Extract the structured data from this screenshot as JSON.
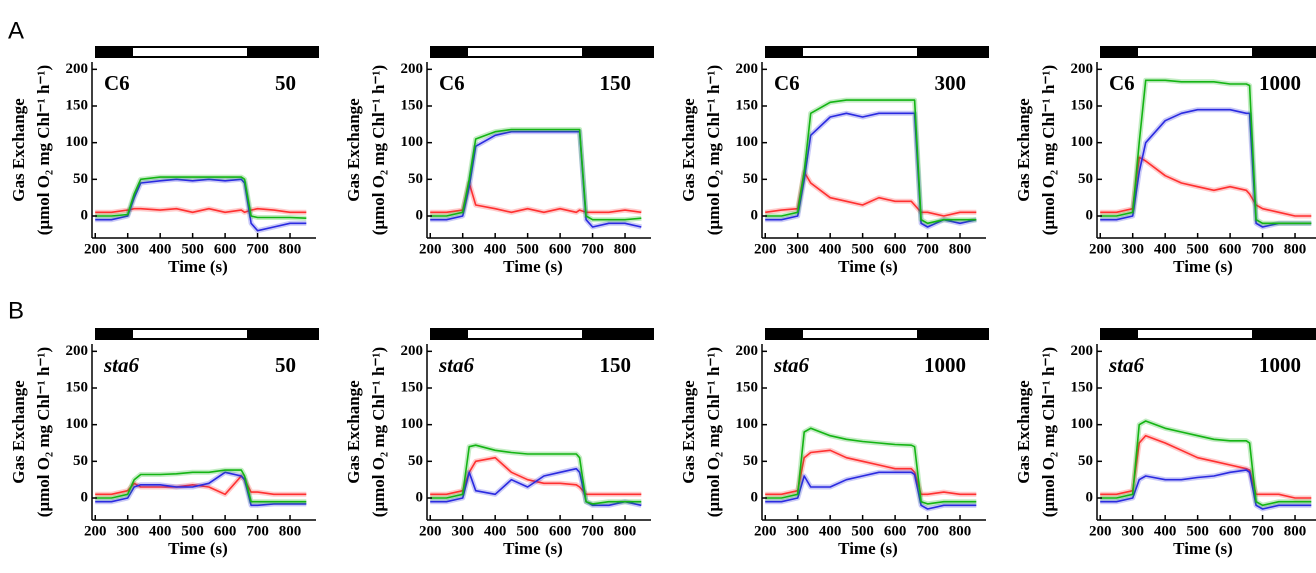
{
  "panels": [
    "A",
    "B"
  ],
  "chart_data": [
    {
      "type": "line",
      "annotations": [
        "C6",
        "50"
      ],
      "annotation_style": "normal",
      "ylabel": [
        "Gas Exchange",
        "(μmol O₂ mg Chl⁻¹ h⁻¹)"
      ],
      "xlabel": "Time (s)",
      "x": [
        200,
        250,
        300,
        320,
        340,
        400,
        450,
        500,
        550,
        600,
        650,
        660,
        680,
        700,
        750,
        800,
        850
      ],
      "xlim": [
        190,
        880
      ],
      "xticks": [
        200,
        300,
        400,
        500,
        600,
        700,
        800
      ],
      "ylim": [
        -30,
        210
      ],
      "yticks": [
        0,
        50,
        100,
        150,
        200
      ],
      "series": [
        {
          "color": "#ff3030",
          "values": [
            5,
            5,
            8,
            10,
            10,
            8,
            10,
            5,
            10,
            5,
            8,
            5,
            8,
            10,
            8,
            5,
            5
          ]
        },
        {
          "color": "#2a2ae0",
          "values": [
            -5,
            -5,
            0,
            25,
            45,
            48,
            50,
            48,
            50,
            48,
            50,
            45,
            -10,
            -20,
            -15,
            -10,
            -10
          ]
        },
        {
          "color": "#14b414",
          "values": [
            0,
            0,
            2,
            30,
            50,
            53,
            53,
            53,
            53,
            53,
            53,
            50,
            0,
            -2,
            -2,
            -2,
            -3
          ]
        }
      ]
    },
    {
      "type": "line",
      "annotations": [
        "C6",
        "150"
      ],
      "annotation_style": "normal",
      "ylabel": [
        "Gas Exchange",
        "(μmol O₂ mg Chl⁻¹ h⁻¹)"
      ],
      "xlabel": "Time (s)",
      "x": [
        200,
        250,
        300,
        320,
        340,
        400,
        450,
        500,
        550,
        600,
        650,
        660,
        680,
        700,
        750,
        800,
        850
      ],
      "xlim": [
        190,
        880
      ],
      "xticks": [
        200,
        300,
        400,
        500,
        600,
        700,
        800
      ],
      "ylim": [
        -30,
        210
      ],
      "yticks": [
        0,
        50,
        100,
        150,
        200
      ],
      "series": [
        {
          "color": "#ff3030",
          "values": [
            5,
            5,
            8,
            45,
            15,
            10,
            5,
            10,
            5,
            10,
            5,
            8,
            5,
            5,
            5,
            8,
            5
          ]
        },
        {
          "color": "#2a2ae0",
          "values": [
            -5,
            -5,
            0,
            40,
            95,
            110,
            115,
            115,
            115,
            115,
            115,
            115,
            -5,
            -15,
            -10,
            -10,
            -15
          ]
        },
        {
          "color": "#14b414",
          "values": [
            0,
            0,
            5,
            50,
            105,
            115,
            118,
            118,
            118,
            118,
            118,
            118,
            0,
            -5,
            -5,
            -5,
            -3
          ]
        }
      ]
    },
    {
      "type": "line",
      "annotations": [
        "C6",
        "300"
      ],
      "annotation_style": "normal",
      "ylabel": [
        "Gas Exchange",
        "(μmol O₂ mg Chl⁻¹ h⁻¹)"
      ],
      "xlabel": "Time (s)",
      "x": [
        200,
        250,
        300,
        320,
        340,
        400,
        450,
        500,
        550,
        600,
        650,
        660,
        680,
        700,
        750,
        800,
        850
      ],
      "xlim": [
        190,
        880
      ],
      "xticks": [
        200,
        300,
        400,
        500,
        600,
        700,
        800
      ],
      "ylim": [
        -30,
        210
      ],
      "yticks": [
        0,
        50,
        100,
        150,
        200
      ],
      "series": [
        {
          "color": "#ff3030",
          "values": [
            5,
            8,
            10,
            60,
            45,
            25,
            20,
            15,
            25,
            20,
            20,
            15,
            5,
            5,
            0,
            5,
            5
          ]
        },
        {
          "color": "#2a2ae0",
          "values": [
            -5,
            -5,
            0,
            50,
            110,
            135,
            140,
            135,
            140,
            140,
            140,
            140,
            -10,
            -15,
            -5,
            -10,
            -5
          ]
        },
        {
          "color": "#14b414",
          "values": [
            0,
            0,
            5,
            60,
            140,
            155,
            158,
            158,
            158,
            158,
            158,
            158,
            -5,
            -10,
            -5,
            -5,
            -5
          ]
        }
      ]
    },
    {
      "type": "line",
      "annotations": [
        "C6",
        "1000"
      ],
      "annotation_style": "normal",
      "ylabel": [
        "Gas Exchange",
        "(μmol O₂ mg Chl⁻¹ h⁻¹)"
      ],
      "xlabel": "Time (s)",
      "x": [
        200,
        250,
        300,
        320,
        340,
        400,
        450,
        500,
        550,
        600,
        650,
        660,
        680,
        700,
        750,
        800,
        850
      ],
      "xlim": [
        190,
        880
      ],
      "xticks": [
        200,
        300,
        400,
        500,
        600,
        700,
        800
      ],
      "ylim": [
        -30,
        210
      ],
      "yticks": [
        0,
        50,
        100,
        150,
        200
      ],
      "series": [
        {
          "color": "#ff3030",
          "values": [
            5,
            5,
            10,
            80,
            75,
            55,
            45,
            40,
            35,
            40,
            35,
            30,
            15,
            10,
            5,
            0,
            0
          ]
        },
        {
          "color": "#2a2ae0",
          "values": [
            -5,
            -5,
            0,
            60,
            100,
            130,
            140,
            145,
            145,
            145,
            140,
            140,
            -10,
            -15,
            -10,
            -10,
            -10
          ]
        },
        {
          "color": "#14b414",
          "values": [
            0,
            0,
            5,
            100,
            185,
            185,
            183,
            183,
            183,
            180,
            180,
            178,
            -5,
            -10,
            -10,
            -10,
            -10
          ]
        }
      ]
    },
    {
      "type": "line",
      "annotations": [
        "sta6",
        "50"
      ],
      "annotation_style": "italic",
      "ylabel": [
        "Gas Exchange",
        "(μmol O₂ mg Chl⁻¹ h⁻¹)"
      ],
      "xlabel": "Time (s)",
      "x": [
        200,
        250,
        300,
        320,
        340,
        400,
        450,
        500,
        550,
        600,
        650,
        660,
        680,
        700,
        750,
        800,
        850
      ],
      "xlim": [
        190,
        880
      ],
      "xticks": [
        200,
        300,
        400,
        500,
        600,
        700,
        800
      ],
      "ylim": [
        -30,
        210
      ],
      "yticks": [
        0,
        50,
        100,
        150,
        200
      ],
      "series": [
        {
          "color": "#ff3030",
          "values": [
            5,
            5,
            10,
            20,
            15,
            15,
            15,
            18,
            15,
            5,
            30,
            25,
            8,
            8,
            5,
            5,
            5
          ]
        },
        {
          "color": "#2a2ae0",
          "values": [
            -5,
            -5,
            0,
            15,
            18,
            18,
            15,
            15,
            20,
            35,
            30,
            25,
            -10,
            -10,
            -8,
            -8,
            -8
          ]
        },
        {
          "color": "#14b414",
          "values": [
            0,
            0,
            5,
            25,
            32,
            32,
            33,
            35,
            35,
            38,
            38,
            30,
            -5,
            -5,
            -5,
            -5,
            -5
          ]
        }
      ]
    },
    {
      "type": "line",
      "annotations": [
        "sta6",
        "150"
      ],
      "annotation_style": "italic",
      "ylabel": [
        "Gas Exchange",
        "(μmol O₂ mg Chl⁻¹ h⁻¹)"
      ],
      "xlabel": "Time (s)",
      "x": [
        200,
        250,
        300,
        320,
        340,
        400,
        450,
        500,
        550,
        600,
        650,
        660,
        680,
        700,
        750,
        800,
        850
      ],
      "xlim": [
        190,
        880
      ],
      "xticks": [
        200,
        300,
        400,
        500,
        600,
        700,
        800
      ],
      "ylim": [
        -30,
        210
      ],
      "yticks": [
        0,
        50,
        100,
        150,
        200
      ],
      "series": [
        {
          "color": "#ff3030",
          "values": [
            5,
            5,
            10,
            35,
            50,
            55,
            35,
            25,
            20,
            20,
            18,
            15,
            5,
            5,
            5,
            5,
            5
          ]
        },
        {
          "color": "#2a2ae0",
          "values": [
            -5,
            -5,
            0,
            35,
            10,
            5,
            25,
            15,
            30,
            35,
            40,
            35,
            -5,
            -10,
            -10,
            -5,
            -10
          ]
        },
        {
          "color": "#14b414",
          "values": [
            0,
            0,
            5,
            70,
            72,
            65,
            62,
            60,
            60,
            60,
            60,
            55,
            -5,
            -8,
            -5,
            -5,
            -5
          ]
        }
      ]
    },
    {
      "type": "line",
      "annotations": [
        "sta6",
        "1000"
      ],
      "annotation_style": "italic",
      "ylabel": [
        "Gas Exchange",
        "(μmol O₂ mg Chl⁻¹ h⁻¹)"
      ],
      "xlabel": "Time (s)",
      "x": [
        200,
        250,
        300,
        320,
        340,
        400,
        450,
        500,
        550,
        600,
        650,
        660,
        680,
        700,
        750,
        800,
        850
      ],
      "xlim": [
        190,
        880
      ],
      "xticks": [
        200,
        300,
        400,
        500,
        600,
        700,
        800
      ],
      "ylim": [
        -30,
        210
      ],
      "yticks": [
        0,
        50,
        100,
        150,
        200
      ],
      "series": [
        {
          "color": "#ff3030",
          "values": [
            5,
            5,
            10,
            55,
            62,
            65,
            55,
            50,
            45,
            40,
            40,
            35,
            5,
            5,
            8,
            5,
            5
          ]
        },
        {
          "color": "#2a2ae0",
          "values": [
            -5,
            -5,
            0,
            30,
            15,
            15,
            25,
            30,
            35,
            35,
            35,
            32,
            -10,
            -15,
            -10,
            -10,
            -10
          ]
        },
        {
          "color": "#14b414",
          "values": [
            0,
            0,
            5,
            90,
            95,
            85,
            80,
            77,
            75,
            73,
            72,
            70,
            -5,
            -8,
            -5,
            -5,
            -5
          ]
        }
      ]
    },
    {
      "type": "line",
      "annotations": [
        "sta6",
        "1000"
      ],
      "annotation_style": "italic",
      "ylabel": [
        "Gas Exchange",
        "(μmol O₂ mg Chl⁻¹ h⁻¹)"
      ],
      "xlabel": "Time (s)",
      "x": [
        200,
        250,
        300,
        320,
        340,
        400,
        450,
        500,
        550,
        600,
        650,
        660,
        680,
        700,
        750,
        800,
        850
      ],
      "xlim": [
        190,
        880
      ],
      "xticks": [
        200,
        300,
        400,
        500,
        600,
        700,
        800
      ],
      "ylim": [
        -30,
        210
      ],
      "yticks": [
        0,
        50,
        100,
        150,
        200
      ],
      "series": [
        {
          "color": "#ff3030",
          "values": [
            5,
            5,
            10,
            75,
            85,
            75,
            65,
            55,
            50,
            45,
            40,
            38,
            5,
            5,
            5,
            0,
            0
          ]
        },
        {
          "color": "#2a2ae0",
          "values": [
            -5,
            -5,
            0,
            25,
            30,
            25,
            25,
            28,
            30,
            35,
            38,
            35,
            -10,
            -15,
            -10,
            -10,
            -10
          ]
        },
        {
          "color": "#14b414",
          "values": [
            0,
            0,
            5,
            100,
            105,
            95,
            90,
            85,
            80,
            78,
            78,
            75,
            -5,
            -10,
            -5,
            -5,
            -5
          ]
        }
      ]
    }
  ]
}
